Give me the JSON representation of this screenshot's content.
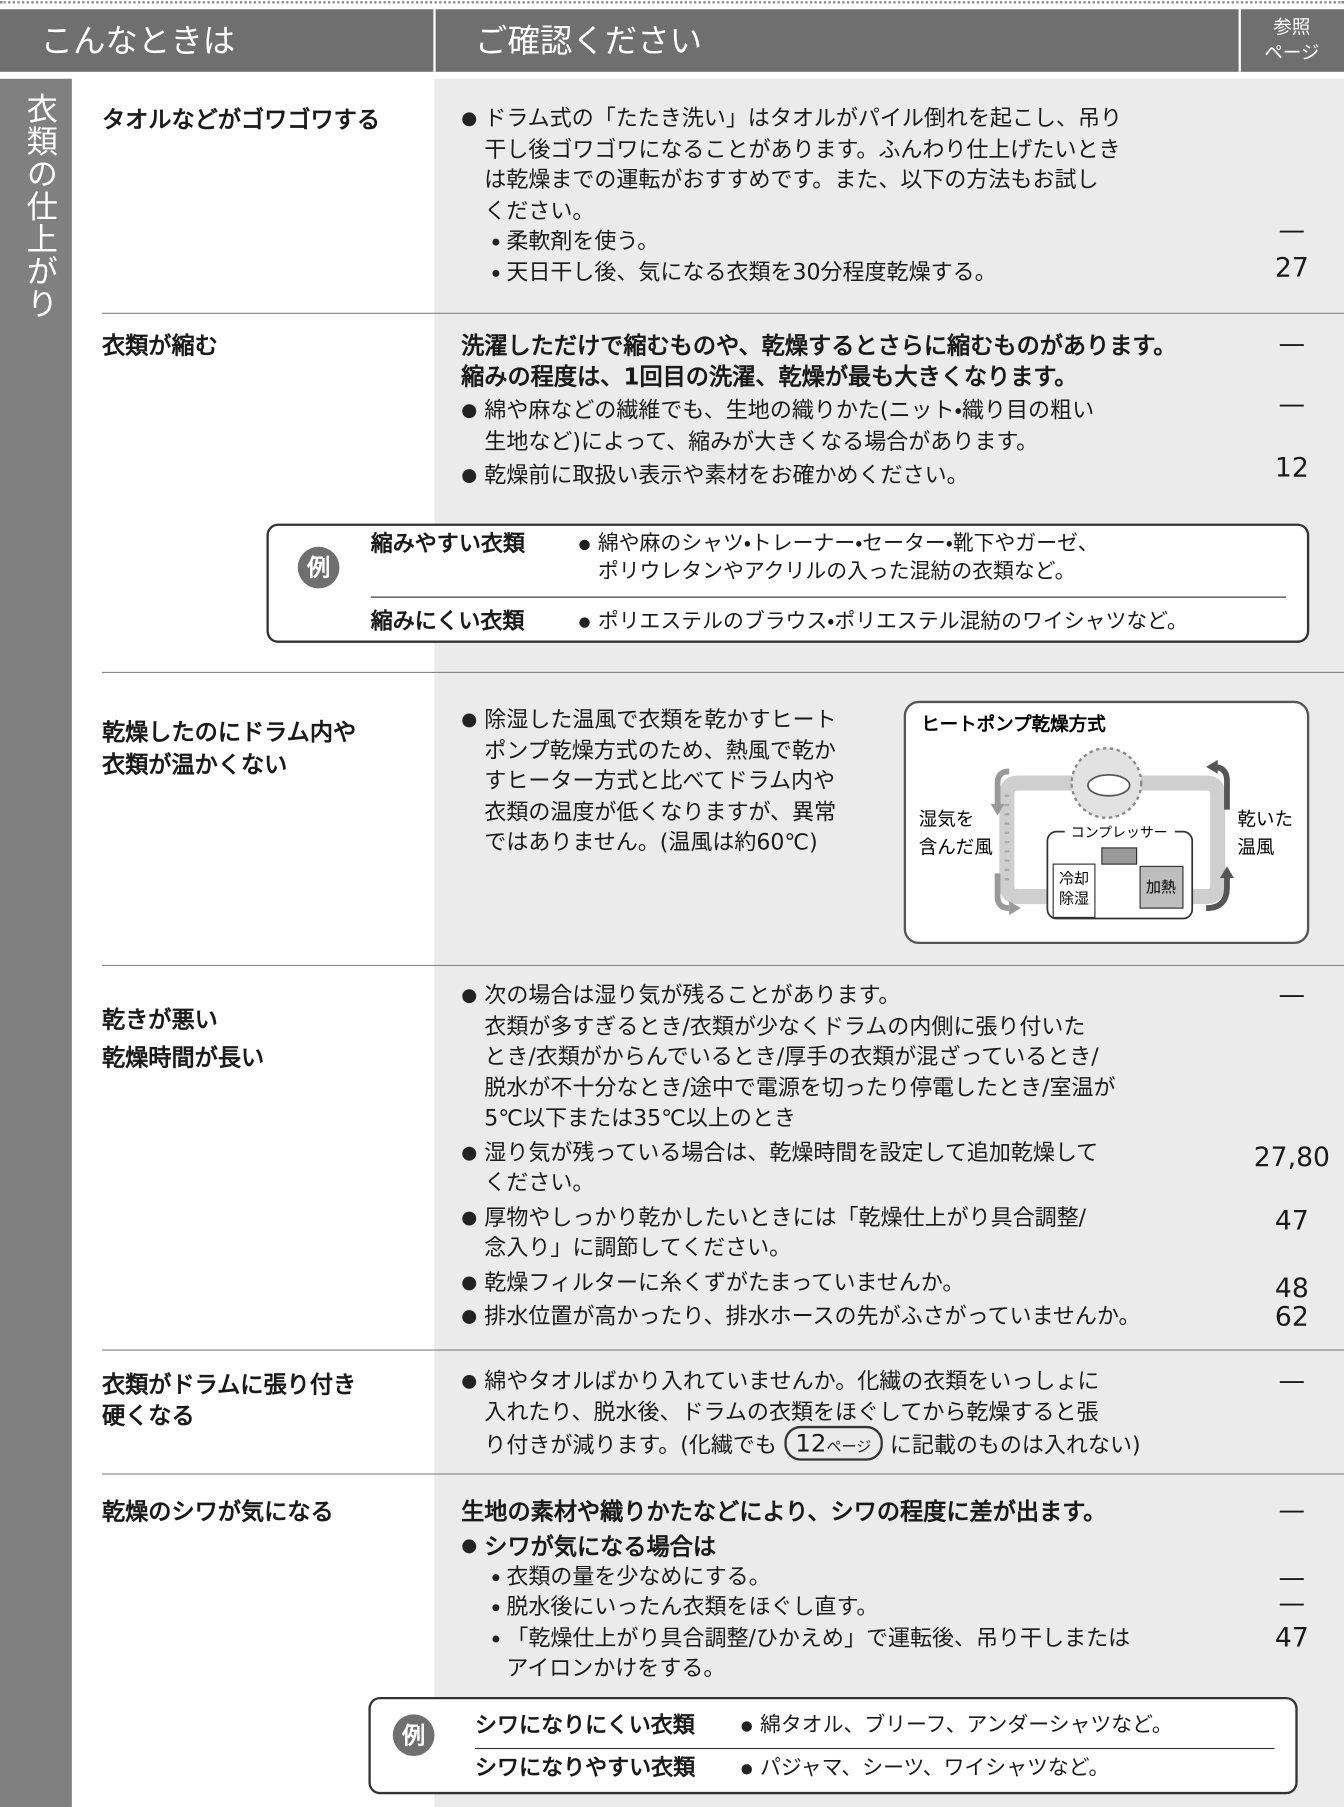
{
  "header": {
    "problem": "こんなときは",
    "check": "ご確認ください",
    "ref": [
      "参照",
      "ページ"
    ]
  },
  "section_label": "衣類の仕上がり",
  "rows": [
    {
      "problem": [
        "タオルなどがゴワゴワする"
      ],
      "bullets": [
        {
          "lines": [
            "ドラム式の「たたき洗い」はタオルがパイル倒れを起こし、吊り",
            "干し後ゴワゴワになることがあります。ふんわり仕上げたいとき",
            "は乾燥までの運転がおすすめです。また、以下の方法もお試し",
            "ください。"
          ]
        }
      ],
      "sub_items": [
        {
          "lines": [
            "柔軟剤を使う。"
          ]
        },
        {
          "lines": [
            "天日干し後、気になる衣類を30分程度乾燥する。"
          ]
        }
      ],
      "refs": [
        "—",
        "27"
      ]
    },
    {
      "problem": [
        "衣類が縮む"
      ],
      "lead": [
        "洗濯しただけで縮むものや、乾燥するとさらに縮むものがあります。",
        "縮みの程度は、1回目の洗濯、乾燥が最も大きくなります。"
      ],
      "bullets": [
        {
          "lines": [
            "綿や麻などの繊維でも、生地の織りかた(ニット・織り目の粗い",
            "生地など)によって、縮みが大きくなる場合があります。"
          ]
        },
        {
          "lines": [
            "乾燥前に取扱い表示や素材をお確かめください。"
          ]
        }
      ],
      "refs": [
        "—",
        "—",
        "12"
      ],
      "example": {
        "badge": "例",
        "rows": [
          {
            "label": "縮みやすい衣類",
            "lines": [
              "綿や麻のシャツ・トレーナー・セーター・靴下やガーゼ、",
              "ポリウレタンやアクリルの入った混紡の衣類など。"
            ]
          },
          {
            "label": "縮みにくい衣類",
            "lines": [
              "ポリエステルのブラウス・ポリエステル混紡のワイシャツなど。"
            ]
          }
        ]
      }
    },
    {
      "problem": [
        "乾燥したのにドラム内や",
        "衣類が温かくない"
      ],
      "bullets": [
        {
          "lines": [
            "除湿した温風で衣類を乾かすヒート",
            "ポンプ乾燥方式のため、熱風で乾か",
            "すヒーター方式と比べてドラム内や",
            "衣類の温度が低くなりますが、異常",
            "ではありません。(温風は約60℃)"
          ]
        }
      ],
      "diagram": {
        "title": "ヒートポンプ乾燥方式",
        "left_label": [
          "湿気を",
          "含んだ風"
        ],
        "right_label": [
          "乾いた",
          "温風"
        ],
        "compressor": "コンプレッサー",
        "cooling": [
          "冷却",
          "除湿"
        ],
        "heating": "加熱"
      }
    },
    {
      "problem": [
        "乾きが悪い",
        "乾燥時間が長い"
      ],
      "bullets": [
        {
          "lines": [
            "次の場合は湿り気が残ることがあります。",
            "衣類が多すぎるとき/衣類が少なくドラムの内側に張り付いた",
            "とき/衣類がからんでいるとき/厚手の衣類が混ざっているとき/",
            "脱水が不十分なとき/途中で電源を切ったり停電したとき/室温が",
            "5℃以下または35℃以上のとき"
          ]
        },
        {
          "lines": [
            "湿り気が残っている場合は、乾燥時間を設定して追加乾燥して",
            "ください。"
          ]
        },
        {
          "lines": [
            "厚物やしっかり乾かしたいときには「乾燥仕上がり具合調整/",
            "念入り」に調節してください。"
          ]
        },
        {
          "lines": [
            "乾燥フィルターに糸くずがたまっていませんか。"
          ]
        },
        {
          "lines": [
            "排水位置が高かったり、排水ホースの先がふさがっていませんか。"
          ]
        }
      ],
      "refs": [
        "—",
        "27,80",
        "47",
        "48",
        "62"
      ]
    },
    {
      "problem": [
        "衣類がドラムに張り付き",
        "硬くなる"
      ],
      "bullets": [
        {
          "lines": [
            "綿やタオルばかり入れていませんか。化繊の衣類をいっしょに",
            "入れたり、脱水後、ドラムの衣類をほぐしてから乾燥すると張"
          ],
          "line_with_ref": {
            "before": "り付きが減ります。(化繊でも",
            "page": "12",
            "page_unit": "ページ",
            "after": "に記載のものは入れない)"
          }
        }
      ],
      "refs": [
        "—"
      ]
    },
    {
      "problem": [
        "乾燥のシワが気になる"
      ],
      "lead": [
        "生地の素材や織りかたなどにより、シワの程度に差が出ます。"
      ],
      "bullets": [
        {
          "lines": [
            "シワが気になる場合は"
          ]
        }
      ],
      "sub_items": [
        {
          "lines": [
            "衣類の量を少なめにする。"
          ]
        },
        {
          "lines": [
            "脱水後にいったん衣類をほぐし直す。"
          ]
        },
        {
          "lines": [
            "「乾燥仕上がり具合調整/ひかえめ」で運転後、吊り干しまたは",
            "アイロンかけをする。"
          ]
        }
      ],
      "refs": [
        "—",
        "—",
        "—",
        "47"
      ],
      "example": {
        "badge": "例",
        "rows": [
          {
            "label": "シワになりにくい衣類",
            "lines": [
              "綿タオル、ブリーフ、アンダーシャツなど。"
            ]
          },
          {
            "label": "シワになりやすい衣類",
            "lines": [
              "パジャマ、シーツ、ワイシャツなど。"
            ]
          }
        ]
      }
    }
  ]
}
